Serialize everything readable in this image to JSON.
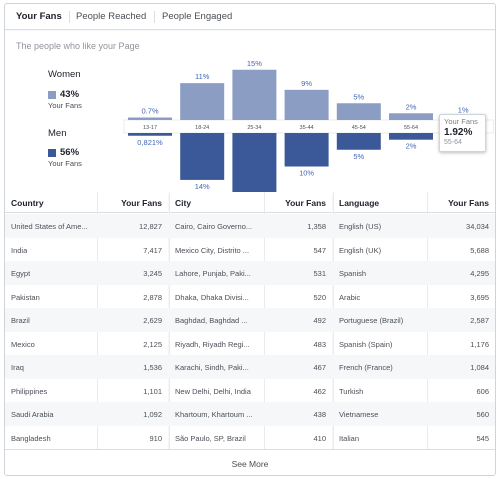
{
  "tabs": [
    {
      "label": "Your Fans",
      "active": true
    },
    {
      "label": "People Reached",
      "active": false
    },
    {
      "label": "People Engaged",
      "active": false
    }
  ],
  "chart": {
    "subtitle": "The people who like your Page",
    "women": {
      "label": "Women",
      "pct": "43%",
      "sub": "Your Fans",
      "color": "#8b9dc3"
    },
    "men": {
      "label": "Men",
      "pct": "56%",
      "sub": "Your Fans",
      "color": "#3b5998"
    },
    "tooltip": {
      "title": "Your Fans",
      "value": "1.92%",
      "age": "55-64"
    }
  },
  "chart_data": {
    "type": "bar",
    "categories": [
      "13-17",
      "18-24",
      "25-34",
      "35-44",
      "45-54",
      "55-64",
      "65+"
    ],
    "series": [
      {
        "name": "Women",
        "values": [
          0.7,
          11,
          15,
          9,
          5,
          2,
          1
        ],
        "labels": [
          "0.7%",
          "11%",
          "15%",
          "9%",
          "5%",
          "2%",
          "1%"
        ]
      },
      {
        "name": "Men",
        "values": [
          0.821,
          14,
          23,
          10,
          5,
          2,
          0
        ],
        "labels": [
          "0,821%",
          "14%",
          "23%",
          "10%",
          "5%",
          "2%",
          ""
        ]
      }
    ]
  },
  "tables": {
    "country": {
      "headers": [
        "Country",
        "Your Fans"
      ],
      "rows": [
        [
          "United States of Ame...",
          "12,827"
        ],
        [
          "India",
          "7,417"
        ],
        [
          "Egypt",
          "3,245"
        ],
        [
          "Pakistan",
          "2,878"
        ],
        [
          "Brazil",
          "2,629"
        ],
        [
          "Mexico",
          "2,125"
        ],
        [
          "Iraq",
          "1,536"
        ],
        [
          "Philippines",
          "1,101"
        ],
        [
          "Saudi Arabia",
          "1,092"
        ],
        [
          "Bangladesh",
          "910"
        ]
      ]
    },
    "city": {
      "headers": [
        "City",
        "Your Fans"
      ],
      "rows": [
        [
          "Cairo, Cairo Governo...",
          "1,358"
        ],
        [
          "Mexico City, Distrito ...",
          "547"
        ],
        [
          "Lahore, Punjab, Paki...",
          "531"
        ],
        [
          "Dhaka, Dhaka Divisi...",
          "520"
        ],
        [
          "Baghdad, Baghdad ...",
          "492"
        ],
        [
          "Riyadh, Riyadh Regi...",
          "483"
        ],
        [
          "Karachi, Sindh, Paki...",
          "467"
        ],
        [
          "New Delhi, Delhi, India",
          "462"
        ],
        [
          "Khartoum, Khartoum ...",
          "438"
        ],
        [
          "São Paulo, SP, Brazil",
          "410"
        ]
      ]
    },
    "language": {
      "headers": [
        "Language",
        "Your Fans"
      ],
      "rows": [
        [
          "English (US)",
          "34,034"
        ],
        [
          "English (UK)",
          "5,688"
        ],
        [
          "Spanish",
          "4,295"
        ],
        [
          "Arabic",
          "3,695"
        ],
        [
          "Portuguese (Brazil)",
          "2,587"
        ],
        [
          "Spanish (Spain)",
          "1,176"
        ],
        [
          "French (France)",
          "1,084"
        ],
        [
          "Turkish",
          "606"
        ],
        [
          "Vietnamese",
          "560"
        ],
        [
          "Italian",
          "545"
        ]
      ]
    }
  },
  "see_more": "See More"
}
